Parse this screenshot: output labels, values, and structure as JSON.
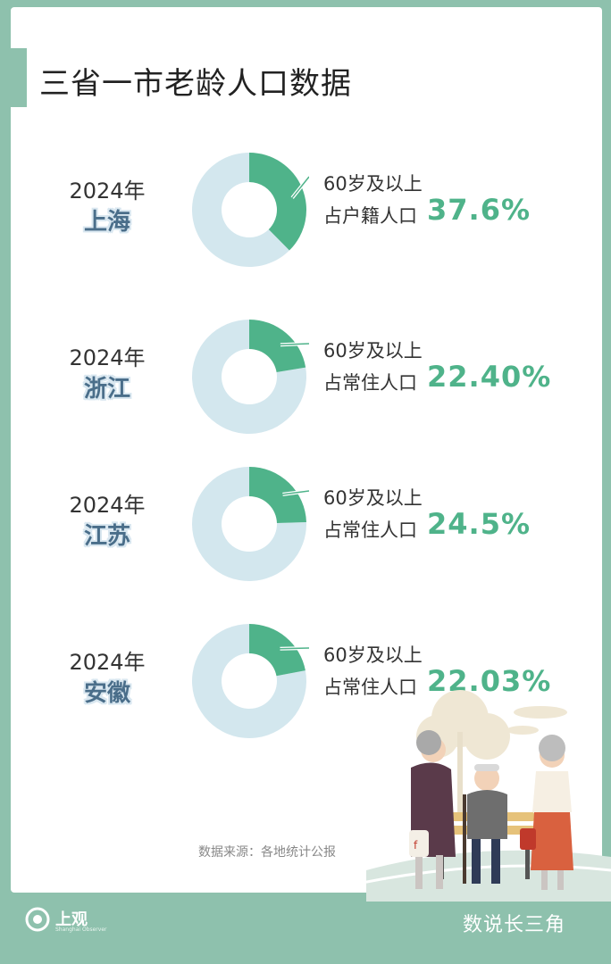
{
  "title": "三省一市老龄人口数据",
  "rows": [
    {
      "year": "2024年",
      "province": "上海",
      "line1": "60岁及以上",
      "line2": "占户籍人口",
      "percent": "37.6%"
    },
    {
      "year": "2024年",
      "province": "浙江",
      "line1": "60岁及以上",
      "line2": "占常住人口",
      "percent": "22.40%"
    },
    {
      "year": "2024年",
      "province": "江苏",
      "line1": "60岁及以上",
      "line2": "占常住人口",
      "percent": "24.5%"
    },
    {
      "year": "2024年",
      "province": "安徽",
      "line1": "60岁及以上",
      "line2": "占常住人口",
      "percent": "22.03%"
    }
  ],
  "source": "数据来源：各地统计公报",
  "footer": {
    "logo_text": "上观",
    "logo_sub": "Shanghai Observer",
    "brand": "数说长三角"
  },
  "colors": {
    "background": "#8ec1ad",
    "donut_value": "#4fb38a",
    "donut_rest": "#d3e7ee",
    "percent": "#4fb38a",
    "province": "#4a6e8a"
  },
  "chart_data": {
    "type": "pie",
    "title": "三省一市老龄人口数据",
    "categories": [
      "上海",
      "浙江",
      "江苏",
      "安徽"
    ],
    "values": [
      37.6,
      22.4,
      24.5,
      22.03
    ],
    "unit": "%"
  }
}
